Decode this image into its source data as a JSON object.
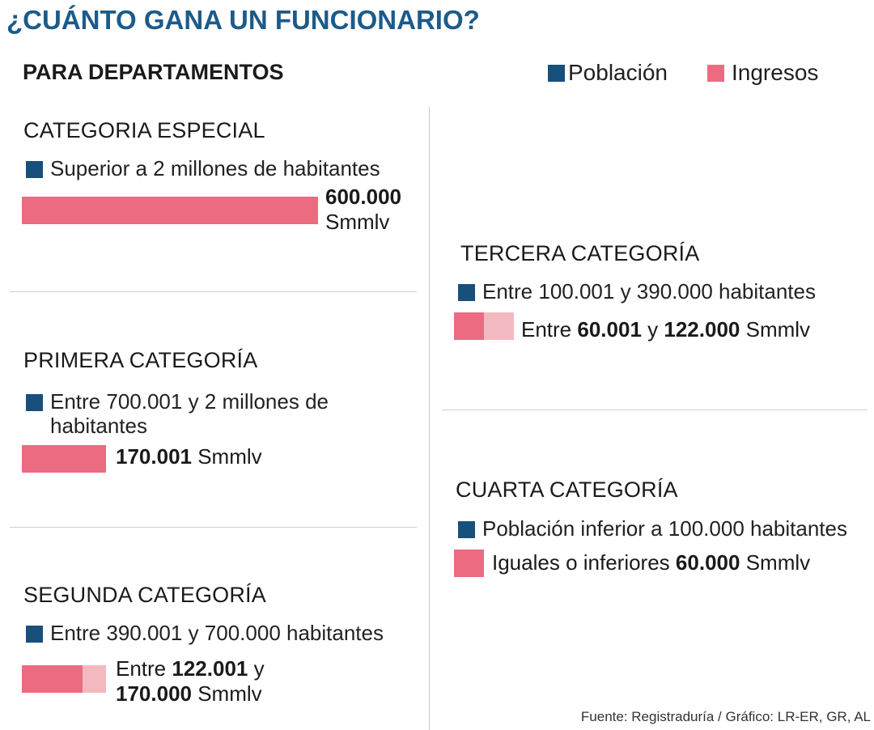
{
  "title": "¿CUÁNTO GANA UN FUNCIONARIO?",
  "subtitle": "PARA DEPARTAMENTOS",
  "legend": [
    {
      "label": "Población",
      "color": "#174f7d"
    },
    {
      "label": "Ingresos",
      "color": "#ec6b81"
    }
  ],
  "colors": {
    "poblacion": "#174f7d",
    "ingresos": "#ec6b81",
    "ingresos_range": "#f3b9c1"
  },
  "source": "Fuente: Registraduría / Gráfico: LR-ER, GR, AL",
  "chart_data": {
    "type": "bar",
    "title": "¿CUÁNTO GANA UN FUNCIONARIO?",
    "subtitle": "PARA DEPARTAMENTOS",
    "unit": "Smmlv",
    "categories": [
      "CATEGORIA ESPECIAL",
      "PRIMERA CATEGORÍA",
      "SEGUNDA CATEGORÍA",
      "TERCERA CATEGORÍA",
      "CUARTA CATEGORÍA"
    ],
    "series": [
      {
        "name": "Ingresos",
        "min": [
          600000,
          170001,
          122001,
          60001,
          0
        ],
        "max": [
          600000,
          170001,
          170000,
          122000,
          60000
        ]
      }
    ],
    "items": {
      "especial": {
        "title": "CATEGORIA ESPECIAL",
        "population": "Superior a 2 millones de habitantes",
        "value_bold": "600.000",
        "value_unit": "Smmlv",
        "min": 600000,
        "max": 600000
      },
      "primera": {
        "title": "PRIMERA CATEGORÍA",
        "population": "Entre 700.001 y 2 millones de habitantes",
        "value_bold": "170.001",
        "value_unit": "Smmlv",
        "min": 170001,
        "max": 170001
      },
      "segunda": {
        "title": "SEGUNDA CATEGORÍA",
        "population": "Entre 390.001 y 700.000 habitantes",
        "value_prefix": "Entre",
        "value_bold_1": "122.001",
        "value_mid": "y",
        "value_bold_2": "170.000",
        "value_unit": "Smmlv",
        "min": 122001,
        "max": 170000
      },
      "tercera": {
        "title": "TERCERA CATEGORÍA",
        "population": "Entre 100.001 y 390.000 habitantes",
        "value_prefix": "Entre",
        "value_bold_1": "60.001",
        "value_mid": "y",
        "value_bold_2": "122.000",
        "value_unit": "Smmlv",
        "min": 60001,
        "max": 122000
      },
      "cuarta": {
        "title": "CUARTA CATEGORÍA",
        "population": "Población inferior a 100.000 habitantes",
        "value_prefix": "Iguales o inferiores",
        "value_bold": "60.000",
        "value_unit": "Smmlv",
        "min": 0,
        "max": 60000
      }
    }
  }
}
